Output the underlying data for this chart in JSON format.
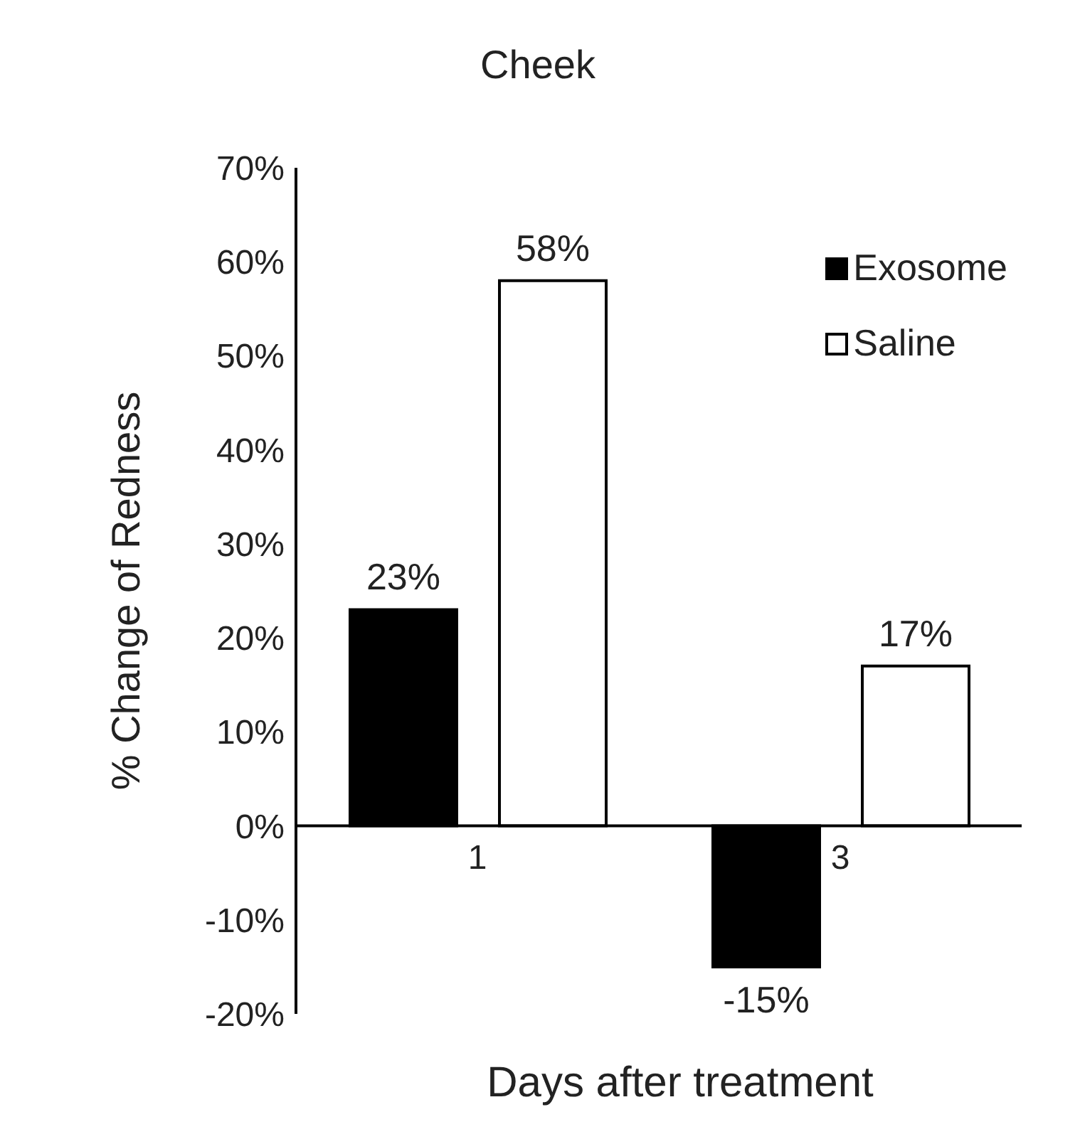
{
  "chart_data": {
    "type": "bar",
    "title": "Cheek",
    "xlabel": "Days after treatment",
    "ylabel": "% Change of Redness",
    "categories": [
      "1",
      "3"
    ],
    "series": [
      {
        "name": "Exosome",
        "color": "#000000",
        "values": [
          23,
          -15
        ],
        "value_labels": [
          "23%",
          "-15%"
        ]
      },
      {
        "name": "Saline",
        "color": "#ffffff",
        "values": [
          58,
          17
        ],
        "value_labels": [
          "58%",
          "17%"
        ]
      }
    ],
    "ylim": [
      -20,
      70
    ],
    "yticks": [
      {
        "value": -20,
        "label": "-20%"
      },
      {
        "value": -10,
        "label": "-10%"
      },
      {
        "value": 0,
        "label": "0%"
      },
      {
        "value": 10,
        "label": "10%"
      },
      {
        "value": 20,
        "label": "20%"
      },
      {
        "value": 30,
        "label": "30%"
      },
      {
        "value": 40,
        "label": "40%"
      },
      {
        "value": 50,
        "label": "50%"
      },
      {
        "value": 60,
        "label": "60%"
      },
      {
        "value": 70,
        "label": "70%"
      }
    ],
    "grid": false,
    "legend": "top right"
  }
}
